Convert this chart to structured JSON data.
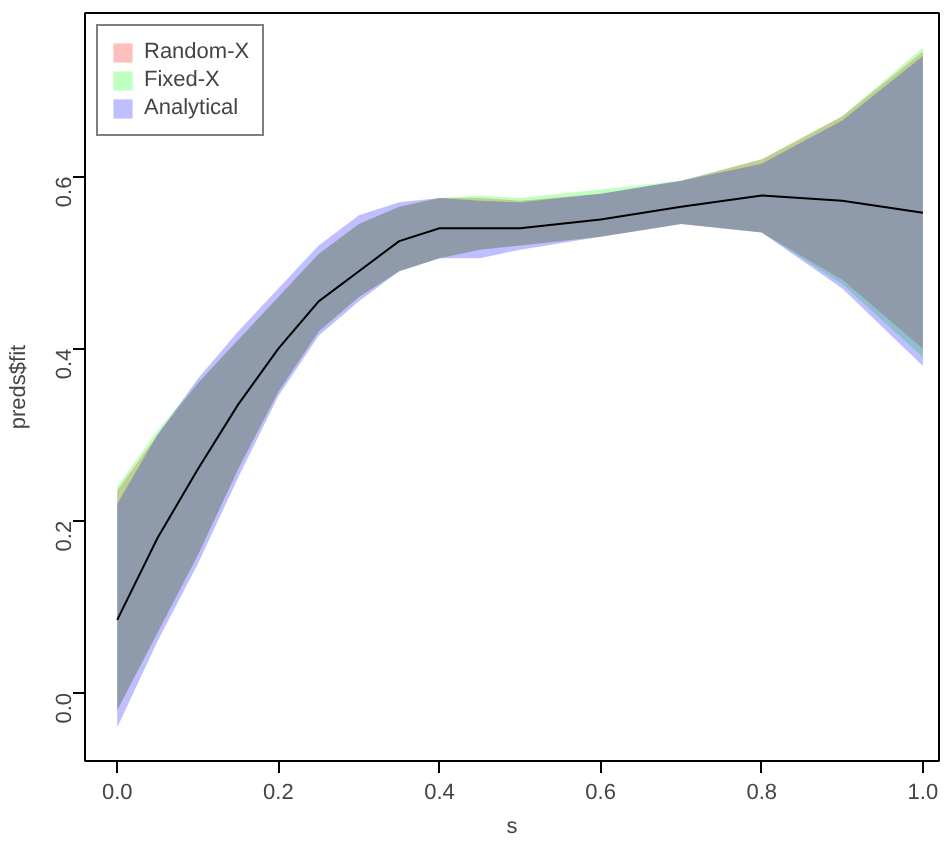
{
  "chart_data": {
    "type": "line",
    "xlabel": "s",
    "ylabel": "preds$fit",
    "x": [
      0,
      0.05,
      0.1,
      0.15,
      0.2,
      0.25,
      0.3,
      0.35,
      0.4,
      0.45,
      0.5,
      0.6,
      0.7,
      0.8,
      0.9,
      1.0
    ],
    "series": [
      {
        "name": "Random-X",
        "color": "#ff0000",
        "values": [
          null,
          null,
          null,
          null,
          null,
          null,
          null,
          null,
          null,
          null,
          null,
          null,
          null,
          null,
          null,
          null
        ],
        "lower": [
          -0.02,
          0.07,
          0.16,
          0.26,
          0.35,
          0.42,
          0.46,
          0.49,
          0.505,
          0.515,
          0.52,
          0.53,
          0.545,
          0.535,
          0.48,
          0.4
        ],
        "upper": [
          0.235,
          0.3,
          0.36,
          0.41,
          0.46,
          0.51,
          0.545,
          0.565,
          0.575,
          0.575,
          0.572,
          0.58,
          0.595,
          0.62,
          0.67,
          0.745
        ]
      },
      {
        "name": "Fixed-X",
        "color": "#00ff00",
        "values": [
          null,
          null,
          null,
          null,
          null,
          null,
          null,
          null,
          null,
          null,
          null,
          null,
          null,
          null,
          null,
          null
        ],
        "lower": [
          -0.02,
          0.07,
          0.16,
          0.26,
          0.35,
          0.42,
          0.46,
          0.49,
          0.505,
          0.515,
          0.52,
          0.53,
          0.545,
          0.535,
          0.475,
          0.39
        ],
        "upper": [
          0.24,
          0.305,
          0.36,
          0.41,
          0.46,
          0.51,
          0.545,
          0.565,
          0.575,
          0.578,
          0.575,
          0.585,
          0.595,
          0.62,
          0.67,
          0.75
        ]
      },
      {
        "name": "Analytical",
        "color": "#0000ff",
        "values": [
          null,
          null,
          null,
          null,
          null,
          null,
          null,
          null,
          null,
          null,
          null,
          null,
          null,
          null,
          null,
          null
        ],
        "lower": [
          -0.04,
          0.06,
          0.15,
          0.25,
          0.345,
          0.415,
          0.455,
          0.49,
          0.505,
          0.505,
          0.515,
          0.53,
          0.545,
          0.535,
          0.47,
          0.38
        ],
        "upper": [
          0.22,
          0.3,
          0.365,
          0.42,
          0.47,
          0.52,
          0.555,
          0.57,
          0.575,
          0.572,
          0.57,
          0.58,
          0.595,
          0.615,
          0.665,
          0.74
        ]
      },
      {
        "color": "#000000",
        "values": [
          0.085,
          0.18,
          0.26,
          0.335,
          0.4,
          0.455,
          0.49,
          0.525,
          0.54,
          0.54,
          0.54,
          0.55,
          0.565,
          0.578,
          0.572,
          0.558
        ]
      }
    ],
    "xlim": [
      -0.04,
      1.02
    ],
    "ylim": [
      -0.079,
      0.79
    ],
    "xticks": [
      {
        "value": 0,
        "label": "0.0"
      },
      0.2,
      0.4,
      0.6,
      0.8,
      {
        "value": 1,
        "label": "1.0"
      }
    ],
    "yticks": [
      {
        "value": 0,
        "label": "0.0"
      },
      0.2,
      0.4,
      0.6
    ],
    "grid": false,
    "legend": "top left"
  }
}
